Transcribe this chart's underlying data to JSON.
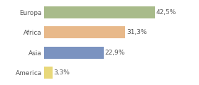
{
  "categories": [
    "Europa",
    "Africa",
    "Asia",
    "America"
  ],
  "values": [
    42.5,
    31.3,
    22.9,
    3.3
  ],
  "labels": [
    "42,5%",
    "31,3%",
    "22,9%",
    "3,3%"
  ],
  "colors": [
    "#a8bb8a",
    "#e8b98a",
    "#7b93c0",
    "#e8d87a"
  ],
  "xlim": [
    0,
    58
  ],
  "background_color": "#ffffff",
  "bar_height": 0.6,
  "label_fontsize": 6.5,
  "tick_fontsize": 6.5
}
